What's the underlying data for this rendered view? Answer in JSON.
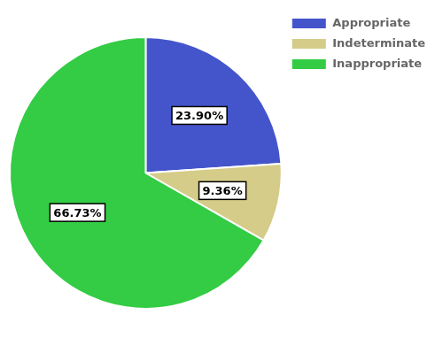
{
  "chart_data": {
    "type": "pie",
    "categories": [
      "Appropriate",
      "Indeterminate",
      "Inappropriate"
    ],
    "values": [
      23.9,
      9.36,
      66.73
    ],
    "value_labels": [
      "23.90%",
      "9.36%",
      "66.73%"
    ],
    "colors": [
      "#4455cc",
      "#d4cc88",
      "#33cc44"
    ],
    "data_labels": true,
    "legend": "upper right"
  }
}
